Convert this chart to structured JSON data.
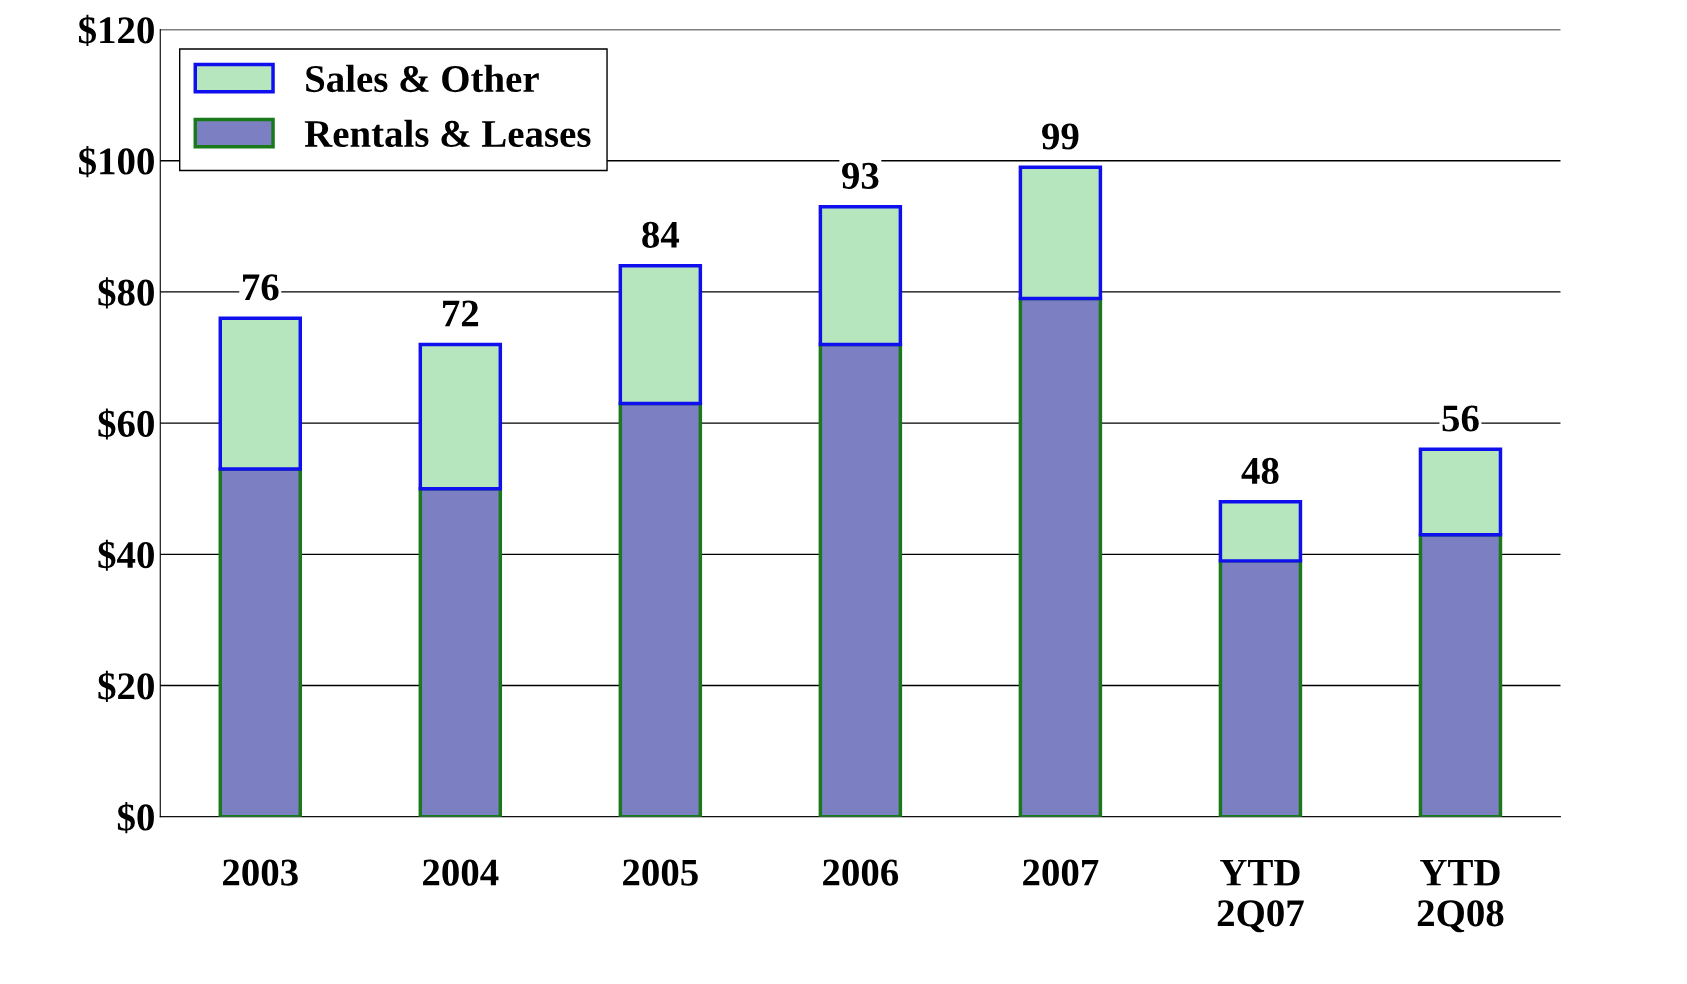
{
  "chart_data": {
    "type": "bar",
    "stacked": true,
    "categories": [
      "2003",
      "2004",
      "2005",
      "2006",
      "2007",
      "YTD\n2Q07",
      "YTD\n2Q08"
    ],
    "series": [
      {
        "name": "Rentals & Leases",
        "color": "#7c80c2",
        "values": [
          53,
          50,
          63,
          72,
          79,
          39,
          43
        ]
      },
      {
        "name": "Sales & Other",
        "color": "#b6e6bd",
        "values": [
          23,
          22,
          21,
          21,
          20,
          9,
          13
        ]
      }
    ],
    "totals": [
      "76",
      "72",
      "84",
      "93",
      "99",
      "48",
      "56"
    ],
    "ylim": [
      0,
      120
    ],
    "yticks": [
      {
        "value": 0,
        "label": "$0"
      },
      {
        "value": 20,
        "label": "$20"
      },
      {
        "value": 40,
        "label": "$40"
      },
      {
        "value": 60,
        "label": "$60"
      },
      {
        "value": 80,
        "label": "$80"
      },
      {
        "value": 100,
        "label": "$100"
      },
      {
        "value": 120,
        "label": "$120"
      }
    ],
    "grid": "y",
    "legend": "top left"
  }
}
